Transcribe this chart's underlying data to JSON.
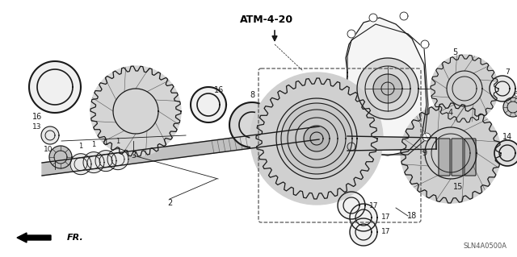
{
  "bg_color": "#ffffff",
  "line_color": "#1a1a1a",
  "diagram_code": "ATM-4-20",
  "part_code": "SLN4A0500A",
  "fr_label": "FR.",
  "figsize": [
    6.4,
    3.19
  ],
  "dpi": 100
}
